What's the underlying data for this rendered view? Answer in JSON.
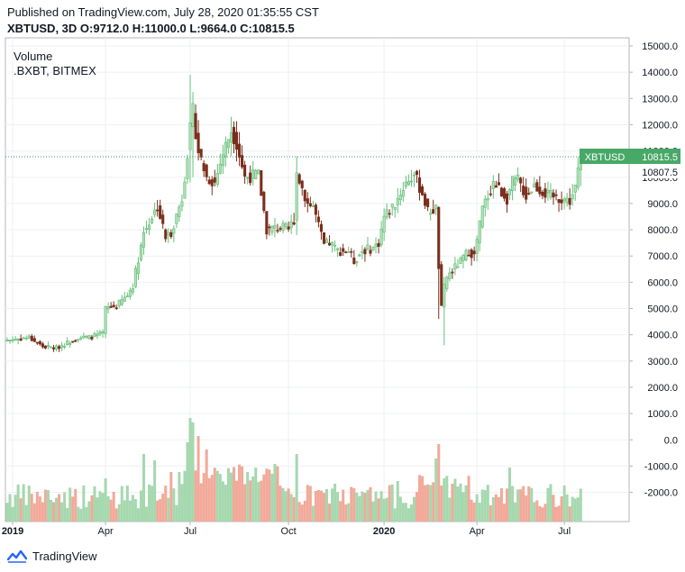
{
  "header": {
    "published": "Published on TradingView.com, July 28, 2020 01:35:55 CST",
    "symbol": "XBTUSD, 3D",
    "open_label": "O:",
    "open_value": "9712.0",
    "high_label": "H:",
    "high_value": "11000.0",
    "low_label": "L:",
    "low_value": "9664.0",
    "close_label": "C:",
    "close_value": "10815.5"
  },
  "legend": {
    "line1": "Volume",
    "line2": ".BXBT, BITMEX"
  },
  "footer": {
    "brand": "TradingView",
    "icon": "tradingview-logo-icon"
  },
  "colors": {
    "up": "#67c17a",
    "up_fill": "#b7e0bd",
    "down": "#7b2e1c",
    "volume_up": "#a5d8ae",
    "volume_down": "#f2a999",
    "grid": "#eef0f3",
    "price_line": "#3a9a72",
    "tag": "#48a868"
  },
  "chart_data": {
    "type": "candlestick",
    "symbol": "XBTUSD",
    "interval": "3D",
    "price_axis": {
      "ylim": [
        -2700,
        15200
      ],
      "ticks": [
        15000.0,
        14000.0,
        13000.0,
        12000.0,
        11000.0,
        10000.0,
        9000.0,
        8000.0,
        7000.0,
        6000.0,
        5000.0,
        4000.0,
        3000.0,
        2000.0,
        1000.0,
        0.0,
        -1000.0,
        -2000.0
      ]
    },
    "tick_labels_y": [
      "15000.0",
      "14000.0",
      "13000.0",
      "12000.0",
      "11000.0",
      "10000.0",
      "9000.0",
      "8000.0",
      "7000.0",
      "6000.0",
      "5000.0",
      "4000.0",
      "3000.0",
      "2000.0",
      "1000.0",
      "0.0",
      "-1000.0",
      "-2000.0"
    ],
    "tick_labels_x": [
      "2019",
      "Apr",
      "Jul",
      "Oct",
      "2020",
      "Apr",
      "Jul"
    ],
    "last_price": {
      "label": "XBTUSD",
      "value": "10815.5",
      "secondary": "10807.5"
    },
    "anchors": [
      [
        0,
        3800
      ],
      [
        8,
        3900
      ],
      [
        13,
        3550
      ],
      [
        18,
        3500
      ],
      [
        22,
        3700
      ],
      [
        26,
        3900
      ],
      [
        30,
        3900
      ],
      [
        35,
        4050
      ],
      [
        36,
        5000
      ],
      [
        40,
        5100
      ],
      [
        44,
        5500
      ],
      [
        46,
        5900
      ],
      [
        50,
        7900
      ],
      [
        55,
        8900
      ],
      [
        58,
        7700
      ],
      [
        60,
        7900
      ],
      [
        64,
        9200
      ],
      [
        67,
        11800
      ],
      [
        68,
        12500
      ],
      [
        70,
        11000
      ],
      [
        73,
        10000
      ],
      [
        76,
        9800
      ],
      [
        79,
        10900
      ],
      [
        82,
        11800
      ],
      [
        84,
        11300
      ],
      [
        87,
        10000
      ],
      [
        92,
        10100
      ],
      [
        95,
        8000
      ],
      [
        100,
        8100
      ],
      [
        103,
        8000
      ],
      [
        105,
        8400
      ],
      [
        106,
        10200
      ],
      [
        110,
        9000
      ],
      [
        112,
        8900
      ],
      [
        116,
        7400
      ],
      [
        118,
        7500
      ],
      [
        121,
        7200
      ],
      [
        125,
        7200
      ],
      [
        127,
        6800
      ],
      [
        130,
        7200
      ],
      [
        134,
        7300
      ],
      [
        136,
        7500
      ],
      [
        138,
        8500
      ],
      [
        142,
        9000
      ],
      [
        146,
        9800
      ],
      [
        149,
        10100
      ],
      [
        152,
        9400
      ],
      [
        154,
        8700
      ],
      [
        157,
        8800
      ],
      [
        158,
        6600
      ],
      [
        159,
        5000
      ],
      [
        160,
        5800
      ],
      [
        161,
        6200
      ],
      [
        166,
        6800
      ],
      [
        169,
        7200
      ],
      [
        171,
        7000
      ],
      [
        174,
        8800
      ],
      [
        176,
        9300
      ],
      [
        178,
        9800
      ],
      [
        183,
        9200
      ],
      [
        185,
        9800
      ],
      [
        187,
        9900
      ],
      [
        190,
        9300
      ],
      [
        193,
        9700
      ],
      [
        198,
        9300
      ],
      [
        203,
        9200
      ],
      [
        206,
        9100
      ],
      [
        208,
        9600
      ],
      [
        210,
        10800
      ]
    ],
    "volume_note": "Volume histogram: each bar coloured like its candle (up = green, down = red)"
  }
}
